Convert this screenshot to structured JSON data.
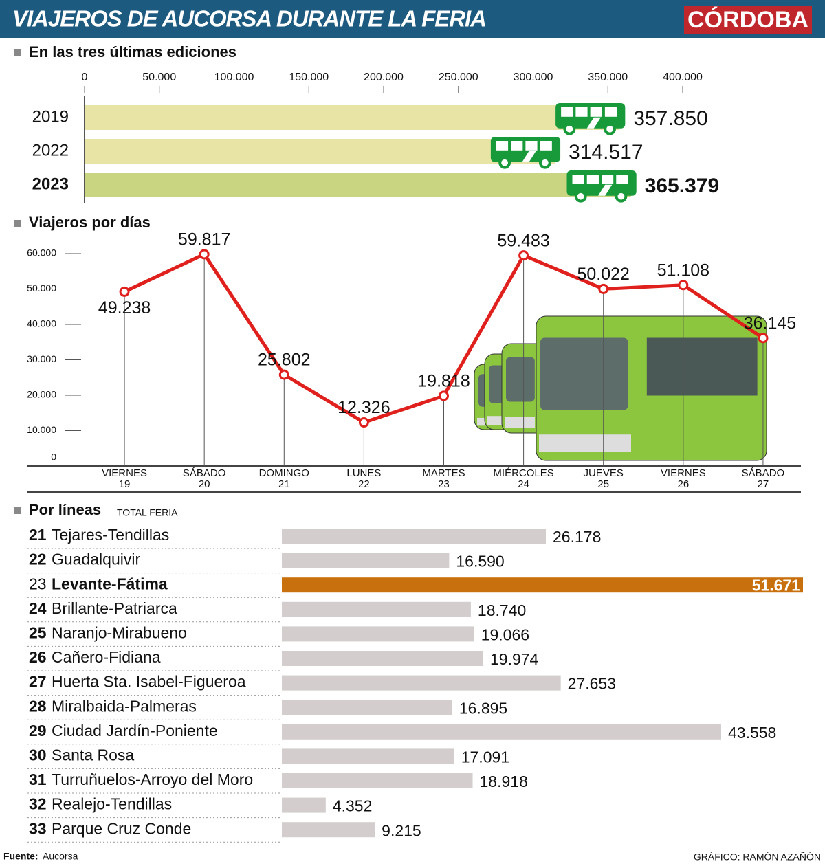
{
  "header": {
    "title": "VIAJEROS DE AUCORSA DURANTE LA FERIA",
    "brand": "CÓRDOBA"
  },
  "chart_data": [
    {
      "type": "bar",
      "orientation": "horizontal",
      "title": "En las tres últimas ediciones",
      "categories": [
        "2019",
        "2022",
        "2023"
      ],
      "values": [
        357850,
        314517,
        365379
      ],
      "value_labels": [
        "357.850",
        "314.517",
        "365.379"
      ],
      "colors": [
        "#e8e4a6",
        "#e8e4a6",
        "#c9d581"
      ],
      "highlight_category": "2023",
      "xlim": [
        0,
        400000
      ],
      "xticks": [
        0,
        {
          "value": 50000,
          "label": "50.000"
        },
        {
          "value": 100000,
          "label": "100.000"
        },
        {
          "value": 150000,
          "label": "150.000"
        },
        {
          "value": 200000,
          "label": "200.000"
        },
        {
          "value": 250000,
          "label": "250.000"
        },
        {
          "value": 300000,
          "label": "300.000"
        },
        {
          "value": 350000,
          "label": "350.000"
        },
        {
          "value": 400000,
          "label": "400.000"
        }
      ]
    },
    {
      "type": "line",
      "title": "Viajeros por días",
      "categories": [
        "VIERNES\n19",
        "SÁBADO\n20",
        "DOMINGO\n21",
        "LUNES\n22",
        "MARTES\n23",
        "MIÉRCOLES\n24",
        "JUEVES\n25",
        "VIERNES\n26",
        "SÁBADO\n27"
      ],
      "values": [
        49238,
        59817,
        25802,
        12326,
        19818,
        59483,
        50022,
        51108,
        36145
      ],
      "value_labels": [
        "49.238",
        "59.817",
        "25.802",
        "12.326",
        "19.818",
        "59.483",
        "50.022",
        "51.108",
        "36.145"
      ],
      "color": "#e0201c",
      "ylim": [
        0,
        60000
      ],
      "yticks": [
        0,
        {
          "value": 10000,
          "label": "10.000"
        },
        {
          "value": 20000,
          "label": "20.000"
        },
        {
          "value": 30000,
          "label": "30.000"
        },
        {
          "value": 40000,
          "label": "40.000"
        },
        {
          "value": 50000,
          "label": "50.000"
        },
        {
          "value": 60000,
          "label": "60.000"
        }
      ]
    },
    {
      "type": "bar",
      "orientation": "horizontal",
      "title": "Por líneas",
      "subtitle": "TOTAL FERIA",
      "line_numbers": [
        "21",
        "22",
        "23",
        "24",
        "25",
        "26",
        "27",
        "28",
        "29",
        "30",
        "31",
        "32",
        "33"
      ],
      "categories": [
        "Tejares-Tendillas",
        "Guadalquivir",
        "Levante-Fátima",
        "Brillante-Patriarca",
        "Naranjo-Mirabueno",
        "Cañero-Fidiana",
        "Huerta Sta. Isabel-Figueroa",
        "Miralbaida-Palmeras",
        "Ciudad Jardín-Poniente",
        "Santa Rosa",
        "Turruñuelos-Arroyo del Moro",
        "Realejo-Tendillas",
        "Parque Cruz Conde"
      ],
      "values": [
        26178,
        16590,
        51671,
        18740,
        19066,
        19974,
        27653,
        16895,
        43558,
        17091,
        18918,
        4352,
        9215
      ],
      "value_labels": [
        "26.178",
        "16.590",
        "51.671",
        "18.740",
        "19.066",
        "19.974",
        "27.653",
        "16.895",
        "43.558",
        "17.091",
        "18.918",
        "4.352",
        "9.215"
      ],
      "color": "#d3cdcd",
      "highlight_color": "#c8700d",
      "highlight_category": "Levante-Fátima"
    }
  ],
  "footer": {
    "source_label": "Fuente:",
    "source": "Aucorsa",
    "credit": "GRÁFICO: RAMÓN AZAÑÓN"
  }
}
